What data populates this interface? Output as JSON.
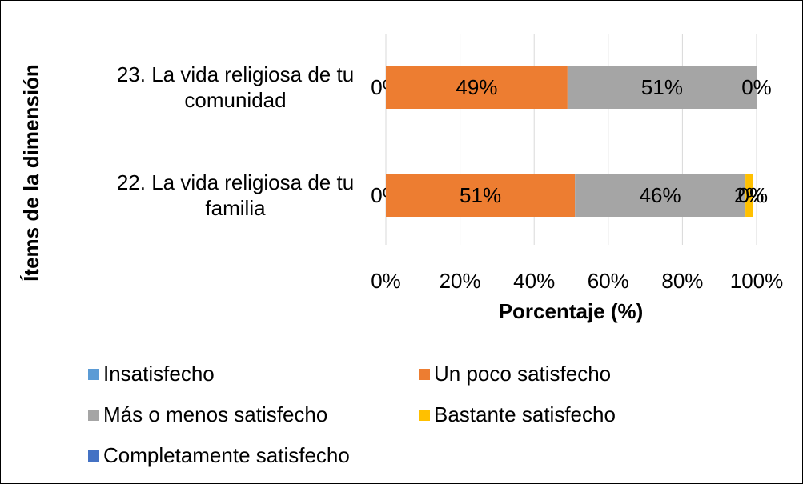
{
  "chart_data": {
    "type": "stacked-bar-horizontal",
    "categories": [
      "23. La vida religiosa de tu comunidad",
      "22. La vida religiosa de tu familia"
    ],
    "series": [
      {
        "name": "Insatisfecho",
        "color": "#5b9bd5",
        "values": [
          0,
          0
        ],
        "value_labels": [
          "0%",
          "0%"
        ]
      },
      {
        "name": "Un poco satisfecho",
        "color": "#ed7d31",
        "values": [
          49,
          51
        ],
        "value_labels": [
          "49%",
          "51%"
        ]
      },
      {
        "name": "Más o menos satisfecho",
        "color": "#a5a5a5",
        "values": [
          51,
          46
        ],
        "value_labels": [
          "51%",
          "46%"
        ]
      },
      {
        "name": "Bastante satisfecho",
        "color": "#ffc000",
        "values": [
          0,
          2
        ],
        "value_labels": [
          "0%",
          "2%"
        ]
      },
      {
        "name": "Completamente satisfecho",
        "color": "#4472c4",
        "values": [
          null,
          0
        ],
        "value_labels": [
          null,
          "0%"
        ]
      }
    ],
    "xlim": [
      0,
      100
    ],
    "xticks": [
      {
        "value": 0,
        "label": "0%"
      },
      {
        "value": 20,
        "label": "20%"
      },
      {
        "value": 40,
        "label": "40%"
      },
      {
        "value": 60,
        "label": "60%"
      },
      {
        "value": 80,
        "label": "80%"
      },
      {
        "value": 100,
        "label": "100%"
      }
    ],
    "xlabel": "Porcentaje (%)",
    "ylabel": "Ítems de la dimensión",
    "grid": true,
    "legend": "bottom"
  }
}
